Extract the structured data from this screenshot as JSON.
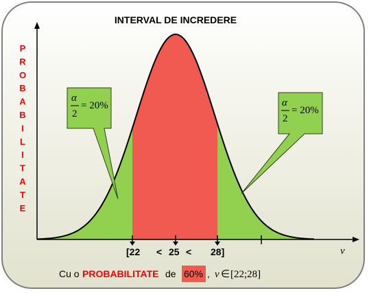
{
  "title": "INTERVAL DE INCREDERE",
  "y_axis_label": "PROBABILITATE",
  "x_axis_variable": "v",
  "callouts": [
    {
      "numerator": "α",
      "denominator": "2",
      "equals": "= 20%"
    },
    {
      "numerator": "α",
      "denominator": "2",
      "equals": "= 20%"
    }
  ],
  "ticks": {
    "lower": "[22",
    "lt1": "<",
    "center": "25",
    "lt2": "<",
    "upper": "28]"
  },
  "caption": {
    "prefix": "Cu o",
    "keyword": "PROBABILITATE",
    "middle": "de",
    "percent": "60%",
    "comma": ",",
    "var": "v",
    "in_symbol": "∈",
    "interval": "[22;28]"
  },
  "colors": {
    "tail_fill": "#92d050",
    "center_fill": "#f15a50",
    "callout_fill": "#92d050",
    "accent_text": "#ff0000",
    "panel_border": "#7f7f7f"
  }
}
